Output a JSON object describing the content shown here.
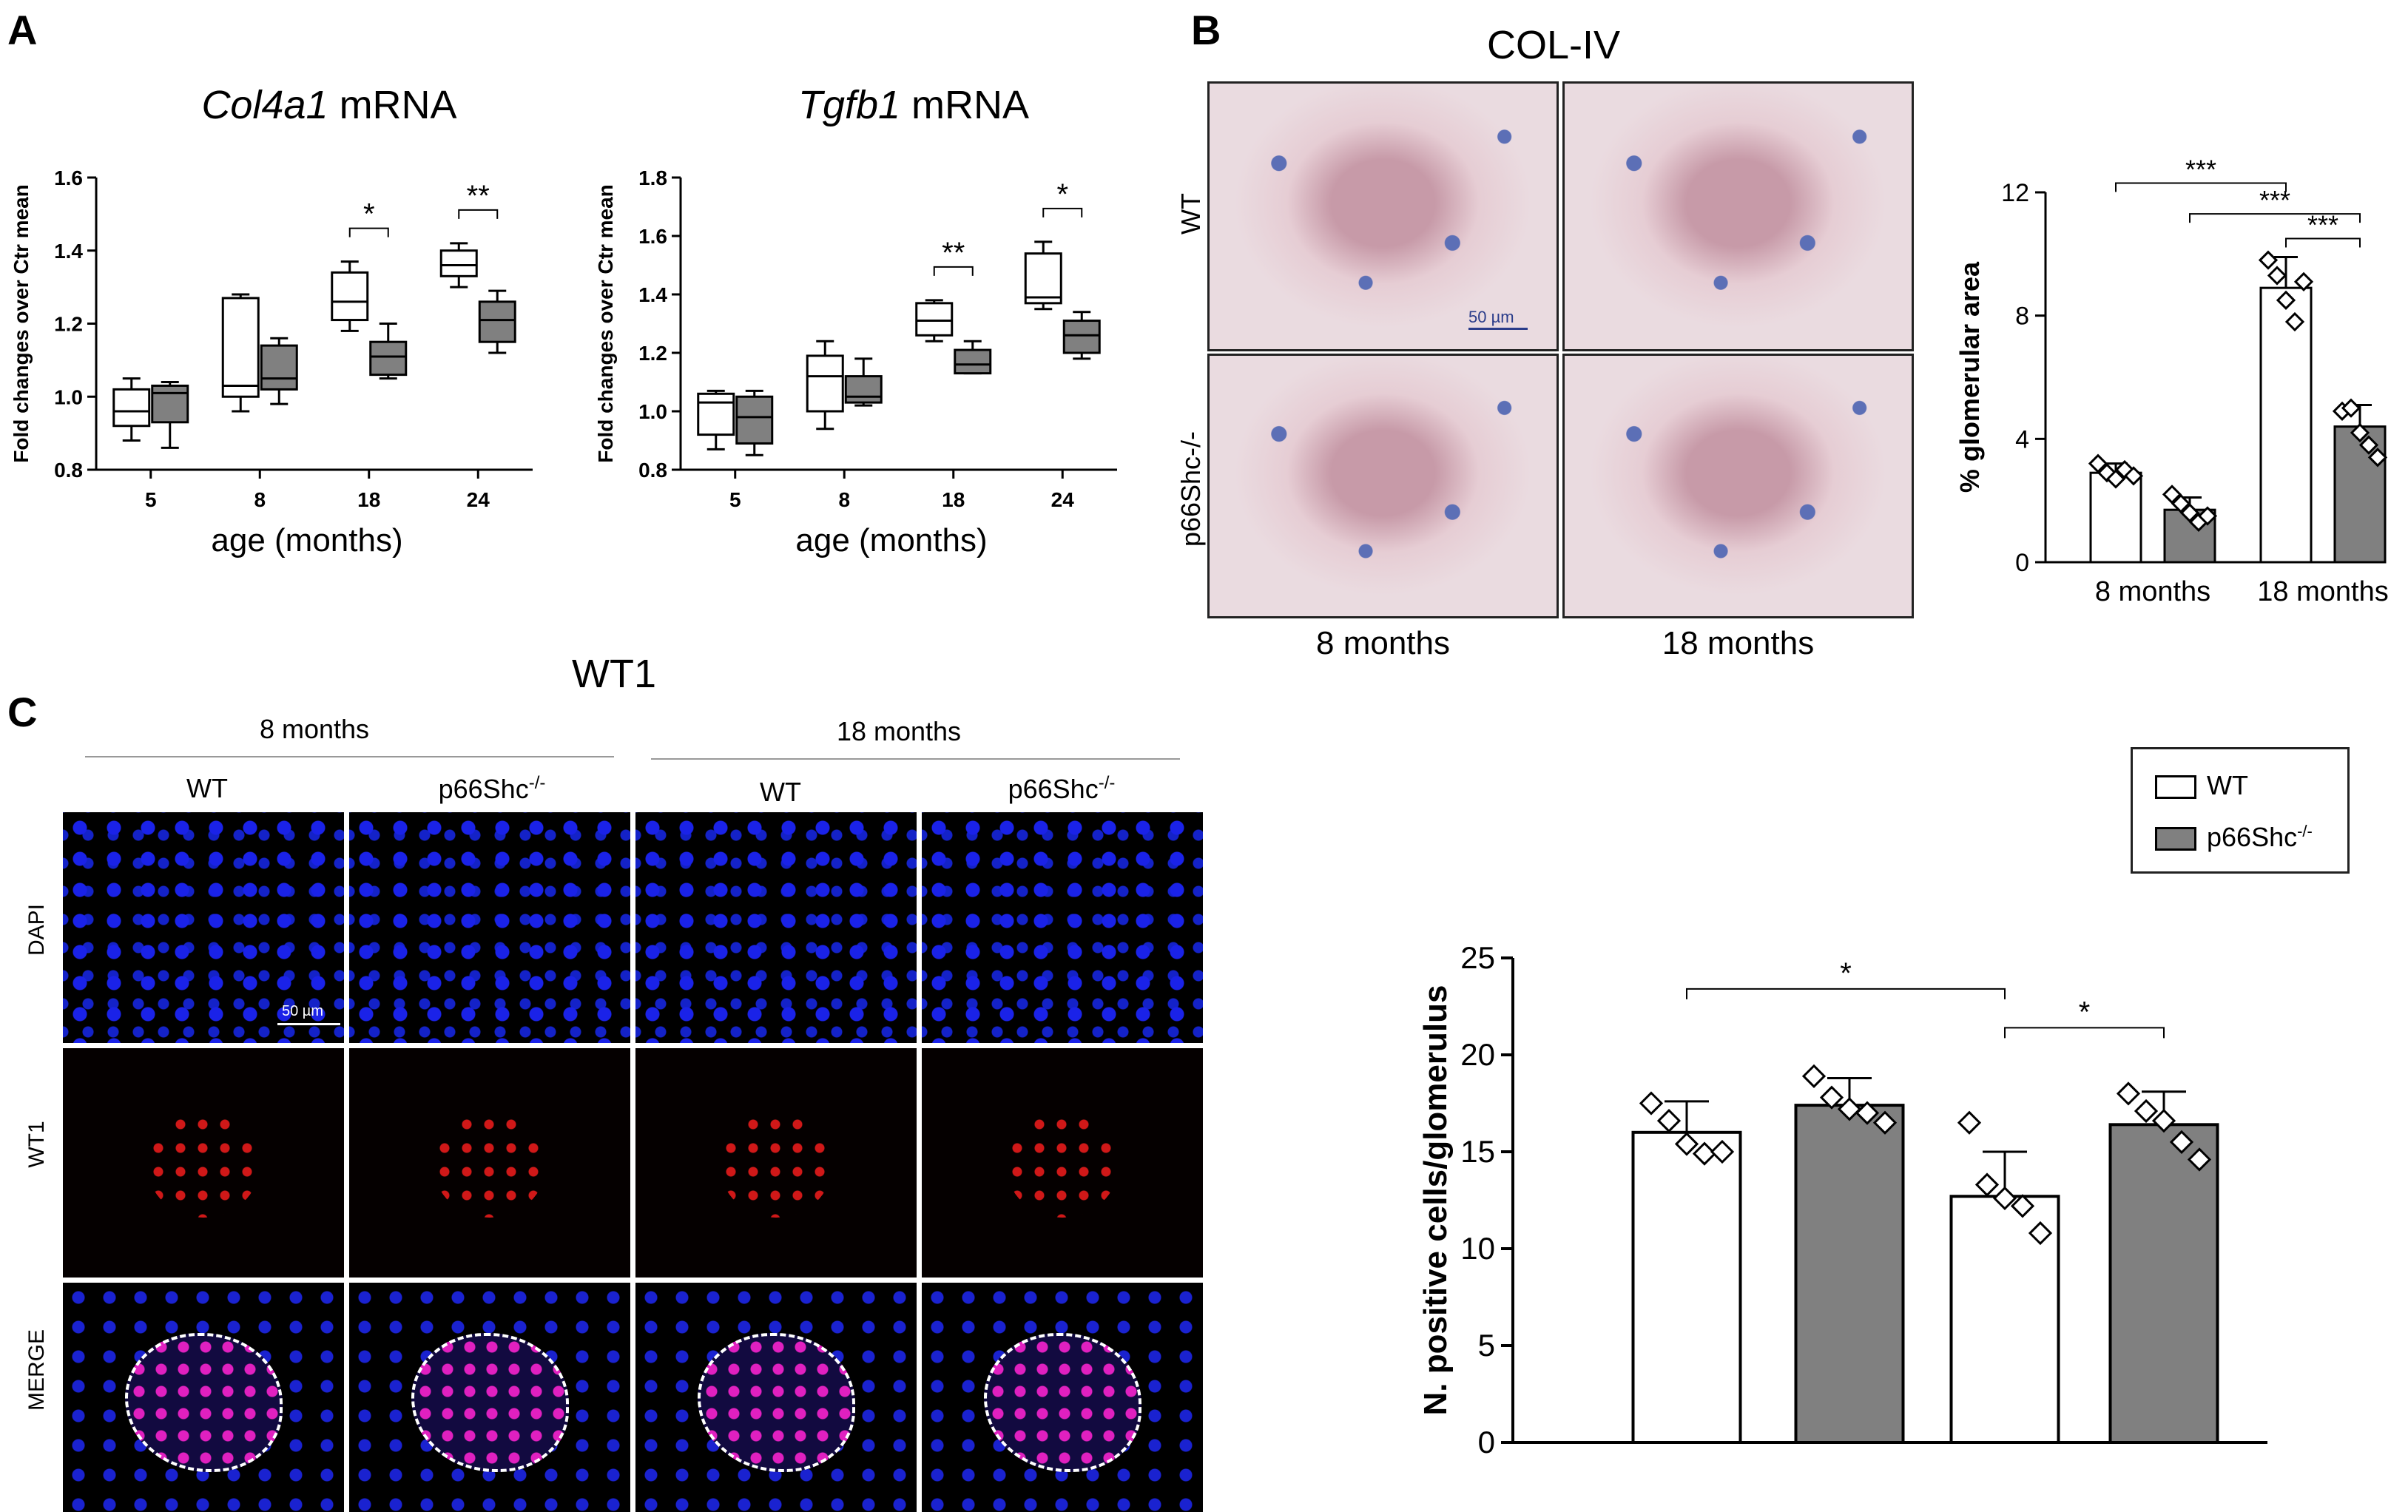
{
  "panels": {
    "A": "A",
    "B": "B",
    "C": "C"
  },
  "chart_data": [
    {
      "type": "box",
      "id": "col4a1",
      "title_italic": "Col4a1",
      "title_rest": " mRNA",
      "ylabel": "Fold changes over Ctr mean",
      "xlabel": "age (months)",
      "categories": [
        "5",
        "8",
        "18",
        "24"
      ],
      "ylim": [
        0.8,
        1.6
      ],
      "yticks": [
        "0.8",
        "1.0",
        "1.2",
        "1.4",
        "1.6"
      ],
      "series": [
        {
          "name": "WT",
          "color": "#ffffff",
          "boxes": [
            {
              "min": 0.88,
              "q1": 0.92,
              "median": 0.96,
              "q3": 1.02,
              "max": 1.05
            },
            {
              "min": 0.96,
              "q1": 1.0,
              "median": 1.03,
              "q3": 1.27,
              "max": 1.28
            },
            {
              "min": 1.18,
              "q1": 1.21,
              "median": 1.26,
              "q3": 1.34,
              "max": 1.37
            },
            {
              "min": 1.3,
              "q1": 1.33,
              "median": 1.36,
              "q3": 1.4,
              "max": 1.42
            }
          ]
        },
        {
          "name": "p66Shc-/-",
          "color": "#808080",
          "boxes": [
            {
              "min": 0.86,
              "q1": 0.93,
              "median": 1.01,
              "q3": 1.03,
              "max": 1.04
            },
            {
              "min": 0.98,
              "q1": 1.02,
              "median": 1.05,
              "q3": 1.14,
              "max": 1.16
            },
            {
              "min": 1.05,
              "q1": 1.06,
              "median": 1.11,
              "q3": 1.15,
              "max": 1.2
            },
            {
              "min": 1.12,
              "q1": 1.15,
              "median": 1.21,
              "q3": 1.26,
              "max": 1.29
            }
          ]
        }
      ],
      "significance": [
        {
          "category": "18",
          "label": "*"
        },
        {
          "category": "24",
          "label": "**"
        }
      ]
    },
    {
      "type": "box",
      "id": "tgfb1",
      "title_italic": "Tgfb1",
      "title_rest": " mRNA",
      "ylabel": "Fold changes over Ctr mean",
      "xlabel": "age (months)",
      "categories": [
        "5",
        "8",
        "18",
        "24"
      ],
      "ylim": [
        0.8,
        1.8
      ],
      "yticks": [
        "0.8",
        "1.0",
        "1.2",
        "1.4",
        "1.6",
        "1.8"
      ],
      "series": [
        {
          "name": "WT",
          "color": "#ffffff",
          "boxes": [
            {
              "min": 0.87,
              "q1": 0.92,
              "median": 1.03,
              "q3": 1.06,
              "max": 1.07
            },
            {
              "min": 0.94,
              "q1": 1.0,
              "median": 1.12,
              "q3": 1.19,
              "max": 1.24
            },
            {
              "min": 1.24,
              "q1": 1.26,
              "median": 1.31,
              "q3": 1.37,
              "max": 1.38
            },
            {
              "min": 1.35,
              "q1": 1.37,
              "median": 1.39,
              "q3": 1.54,
              "max": 1.58
            }
          ]
        },
        {
          "name": "p66Shc-/-",
          "color": "#808080",
          "boxes": [
            {
              "min": 0.85,
              "q1": 0.89,
              "median": 0.98,
              "q3": 1.05,
              "max": 1.07
            },
            {
              "min": 1.02,
              "q1": 1.03,
              "median": 1.05,
              "q3": 1.12,
              "max": 1.18
            },
            {
              "min": 1.13,
              "q1": 1.13,
              "median": 1.16,
              "q3": 1.21,
              "max": 1.24
            },
            {
              "min": 1.18,
              "q1": 1.2,
              "median": 1.26,
              "q3": 1.31,
              "max": 1.34
            }
          ]
        }
      ],
      "significance": [
        {
          "category": "18",
          "label": "**"
        },
        {
          "category": "24",
          "label": "*"
        }
      ]
    },
    {
      "type": "bar",
      "id": "col4-area",
      "ylabel": "% glomerular area",
      "categories": [
        "8 months",
        "18 months"
      ],
      "ylim": [
        0,
        12
      ],
      "yticks": [
        "0",
        "4",
        "8",
        "12"
      ],
      "series": [
        {
          "name": "WT",
          "color": "#ffffff",
          "values": [
            2.9,
            8.9
          ],
          "sd": [
            0.3,
            1.0
          ],
          "points": [
            [
              3.2,
              2.9,
              2.7,
              3.0,
              2.8
            ],
            [
              9.8,
              9.3,
              8.5,
              7.8,
              9.1
            ]
          ]
        },
        {
          "name": "p66Shc-/-",
          "color": "#808080",
          "values": [
            1.7,
            4.4
          ],
          "sd": [
            0.4,
            0.7
          ],
          "points": [
            [
              2.2,
              1.9,
              1.6,
              1.3,
              1.5
            ],
            [
              4.9,
              5.0,
              4.2,
              3.8,
              3.4
            ]
          ]
        }
      ],
      "significance": [
        {
          "from": 0,
          "to": 2,
          "label": "***"
        },
        {
          "from": 1,
          "to": 3,
          "label": "***"
        },
        {
          "from": 2,
          "to": 3,
          "label": "***"
        }
      ]
    },
    {
      "type": "bar",
      "id": "wt1-count",
      "ylabel": "N. positive cells/glomerulus",
      "categories": [
        "8 months WT",
        "8 months p66Shc-/-",
        "18 months WT",
        "18 months p66Shc-/-"
      ],
      "ylim": [
        0,
        25
      ],
      "yticks": [
        "0",
        "5",
        "10",
        "15",
        "20",
        "25"
      ],
      "values": [
        16.0,
        17.4,
        12.7,
        16.4
      ],
      "sd": [
        1.6,
        1.4,
        2.3,
        1.7
      ],
      "colors": [
        "#ffffff",
        "#808080",
        "#ffffff",
        "#808080"
      ],
      "points": [
        [
          17.5,
          16.6,
          15.4,
          14.9,
          15.0
        ],
        [
          18.9,
          17.8,
          17.2,
          17.0,
          16.5
        ],
        [
          16.5,
          13.3,
          12.6,
          12.2,
          10.8
        ],
        [
          18.0,
          17.1,
          16.6,
          15.5,
          14.6
        ]
      ],
      "significance": [
        {
          "from": 0,
          "to": 2,
          "label": "*"
        },
        {
          "from": 2,
          "to": 3,
          "label": "*"
        }
      ]
    }
  ],
  "panelB": {
    "title": "COL-IV",
    "row_labels": [
      "WT",
      "p66Shc-/-"
    ],
    "col_labels": [
      "8 months",
      "18 months"
    ],
    "scale": "50 µm"
  },
  "panelC": {
    "title": "WT1",
    "groups": [
      "8 months",
      "18 months"
    ],
    "columns": [
      "WT",
      "p66Shc",
      "WT",
      "p66Shc"
    ],
    "superscript": "-/-",
    "rows": [
      "DAPI",
      "WT1",
      "MERGE"
    ],
    "scale": "50 µm"
  },
  "legend": {
    "items": [
      {
        "label": "WT",
        "sup": "",
        "color": "#ffffff"
      },
      {
        "label": "p66Shc",
        "sup": "-/-",
        "color": "#808080"
      }
    ]
  }
}
